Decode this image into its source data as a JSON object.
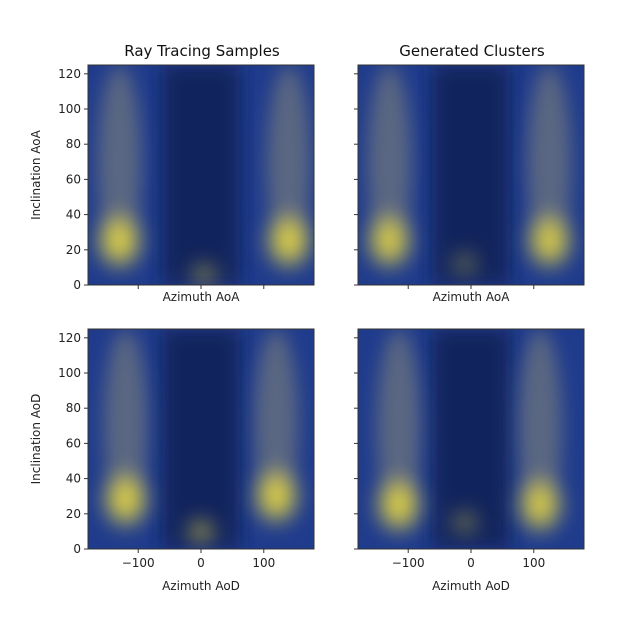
{
  "chart_data": [
    {
      "type": "heatmap",
      "title": "Ray Tracing Samples",
      "xlabel": "Azimuth AoA",
      "ylabel": "Inclination AoA",
      "xlim": [
        -180,
        180
      ],
      "ylim": [
        0,
        125
      ],
      "xticks": [],
      "yticks": [
        0,
        20,
        40,
        60,
        80,
        100,
        120
      ],
      "colormap": [
        "#0d1f4d",
        "#1f3b8c",
        "#8a8a7a",
        "#f2e03c"
      ],
      "hotspots": [
        {
          "x": -130,
          "y": 25,
          "intensity": 1.0
        },
        {
          "x": 140,
          "y": 25,
          "intensity": 1.0
        },
        {
          "x": 5,
          "y": 6,
          "intensity": 0.45
        }
      ]
    },
    {
      "type": "heatmap",
      "title": "Generated Clusters",
      "xlabel": "Azimuth AoA",
      "ylabel": "",
      "xlim": [
        -180,
        180
      ],
      "ylim": [
        0,
        125
      ],
      "xticks": [],
      "yticks": [],
      "colormap": [
        "#0d1f4d",
        "#1f3b8c",
        "#8a8a7a",
        "#f2e03c"
      ],
      "hotspots": [
        {
          "x": -130,
          "y": 25,
          "intensity": 0.95
        },
        {
          "x": 125,
          "y": 25,
          "intensity": 0.95
        },
        {
          "x": -10,
          "y": 12,
          "intensity": 0.35
        }
      ]
    },
    {
      "type": "heatmap",
      "title": "",
      "xlabel": "Azimuth AoD",
      "ylabel": "Inclination AoD",
      "xlim": [
        -180,
        180
      ],
      "ylim": [
        0,
        125
      ],
      "xticks": [
        -100,
        0,
        100
      ],
      "yticks": [
        0,
        20,
        40,
        60,
        80,
        100,
        120
      ],
      "colormap": [
        "#0d1f4d",
        "#1f3b8c",
        "#8a8a7a",
        "#f2e03c"
      ],
      "hotspots": [
        {
          "x": -120,
          "y": 28,
          "intensity": 1.0
        },
        {
          "x": 120,
          "y": 30,
          "intensity": 1.0
        },
        {
          "x": 0,
          "y": 10,
          "intensity": 0.6
        }
      ]
    },
    {
      "type": "heatmap",
      "title": "",
      "xlabel": "Azimuth AoD",
      "ylabel": "",
      "xlim": [
        -180,
        180
      ],
      "ylim": [
        0,
        125
      ],
      "xticks": [
        -100,
        0,
        100
      ],
      "yticks": [],
      "colormap": [
        "#0d1f4d",
        "#1f3b8c",
        "#8a8a7a",
        "#f2e03c"
      ],
      "hotspots": [
        {
          "x": -115,
          "y": 25,
          "intensity": 1.0
        },
        {
          "x": 110,
          "y": 25,
          "intensity": 0.95
        },
        {
          "x": -10,
          "y": 15,
          "intensity": 0.4
        }
      ]
    }
  ]
}
